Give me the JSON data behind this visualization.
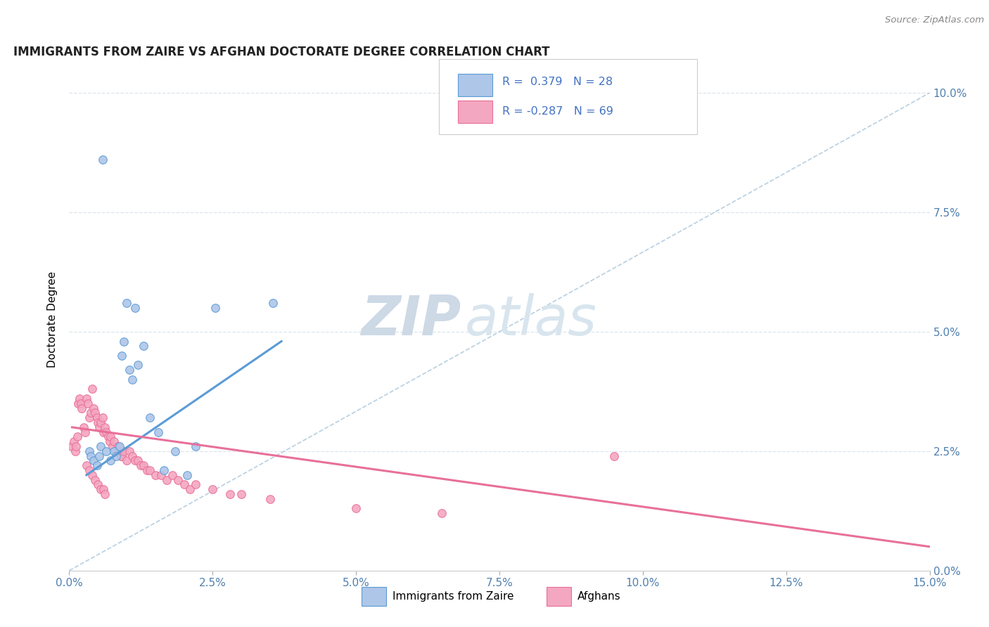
{
  "title": "IMMIGRANTS FROM ZAIRE VS AFGHAN DOCTORATE DEGREE CORRELATION CHART",
  "source": "Source: ZipAtlas.com",
  "ylabel": "Doctorate Degree",
  "xlim": [
    0.0,
    15.0
  ],
  "ylim": [
    0.0,
    10.5
  ],
  "xlabel_vals": [
    0.0,
    2.5,
    5.0,
    7.5,
    10.0,
    12.5,
    15.0
  ],
  "ylabel_vals": [
    0.0,
    2.5,
    5.0,
    7.5,
    10.0
  ],
  "zaire_scatter_x": [
    0.55,
    0.65,
    0.72,
    0.78,
    0.82,
    0.88,
    0.92,
    0.95,
    1.0,
    1.05,
    1.1,
    1.15,
    1.2,
    1.3,
    1.4,
    1.55,
    1.65,
    1.85,
    2.05,
    2.2,
    2.55,
    3.55,
    0.35,
    0.38,
    0.42,
    0.48,
    0.52,
    0.58
  ],
  "zaire_scatter_y": [
    2.6,
    2.5,
    2.3,
    2.5,
    2.4,
    2.6,
    4.5,
    4.8,
    5.6,
    4.2,
    4.0,
    5.5,
    4.3,
    4.7,
    3.2,
    2.9,
    2.1,
    2.5,
    2.0,
    2.6,
    5.5,
    5.6,
    2.5,
    2.4,
    2.3,
    2.2,
    2.4,
    8.6
  ],
  "afghan_scatter_x": [
    0.05,
    0.08,
    0.1,
    0.12,
    0.14,
    0.16,
    0.18,
    0.2,
    0.22,
    0.25,
    0.28,
    0.3,
    0.32,
    0.35,
    0.38,
    0.4,
    0.42,
    0.45,
    0.48,
    0.5,
    0.52,
    0.55,
    0.58,
    0.6,
    0.62,
    0.65,
    0.68,
    0.7,
    0.72,
    0.75,
    0.78,
    0.8,
    0.85,
    0.88,
    0.9,
    0.92,
    0.95,
    1.0,
    1.05,
    1.1,
    1.15,
    1.2,
    1.25,
    1.3,
    1.35,
    1.4,
    1.5,
    1.6,
    1.7,
    1.8,
    1.9,
    2.0,
    2.1,
    2.2,
    2.5,
    2.8,
    3.0,
    3.5,
    5.0,
    6.5,
    9.5,
    0.3,
    0.35,
    0.4,
    0.45,
    0.5,
    0.55,
    0.6,
    0.62
  ],
  "afghan_scatter_y": [
    2.6,
    2.7,
    2.5,
    2.6,
    2.8,
    3.5,
    3.6,
    3.5,
    3.4,
    3.0,
    2.9,
    3.6,
    3.5,
    3.2,
    3.3,
    3.8,
    3.4,
    3.3,
    3.2,
    3.1,
    3.0,
    3.1,
    3.2,
    2.9,
    3.0,
    2.9,
    2.8,
    2.7,
    2.8,
    2.6,
    2.7,
    2.5,
    2.6,
    2.5,
    2.4,
    2.4,
    2.5,
    2.3,
    2.5,
    2.4,
    2.3,
    2.3,
    2.2,
    2.2,
    2.1,
    2.1,
    2.0,
    2.0,
    1.9,
    2.0,
    1.9,
    1.8,
    1.7,
    1.8,
    1.7,
    1.6,
    1.6,
    1.5,
    1.3,
    1.2,
    2.4,
    2.2,
    2.1,
    2.0,
    1.9,
    1.8,
    1.7,
    1.7,
    1.6
  ],
  "zaire_line_x": [
    0.3,
    3.7
  ],
  "zaire_line_y": [
    2.0,
    4.8
  ],
  "afghan_line_x": [
    0.05,
    15.0
  ],
  "afghan_line_y": [
    3.0,
    0.5
  ],
  "diagonal_line_x": [
    0.0,
    15.0
  ],
  "diagonal_line_y": [
    0.0,
    10.0
  ],
  "zaire_color": "#5b9bd5",
  "afghan_color": "#e8709a",
  "zaire_scatter_color": "#aec6e8",
  "afghan_scatter_color": "#f4a7c0",
  "diagonal_color": "#b8cfe0",
  "watermark_zip": "ZIP",
  "watermark_atlas": "atlas",
  "watermark_color": "#cdd9e5",
  "legend_R1": "0.379",
  "legend_N1": "28",
  "legend_R2": "-0.287",
  "legend_N2": "69"
}
